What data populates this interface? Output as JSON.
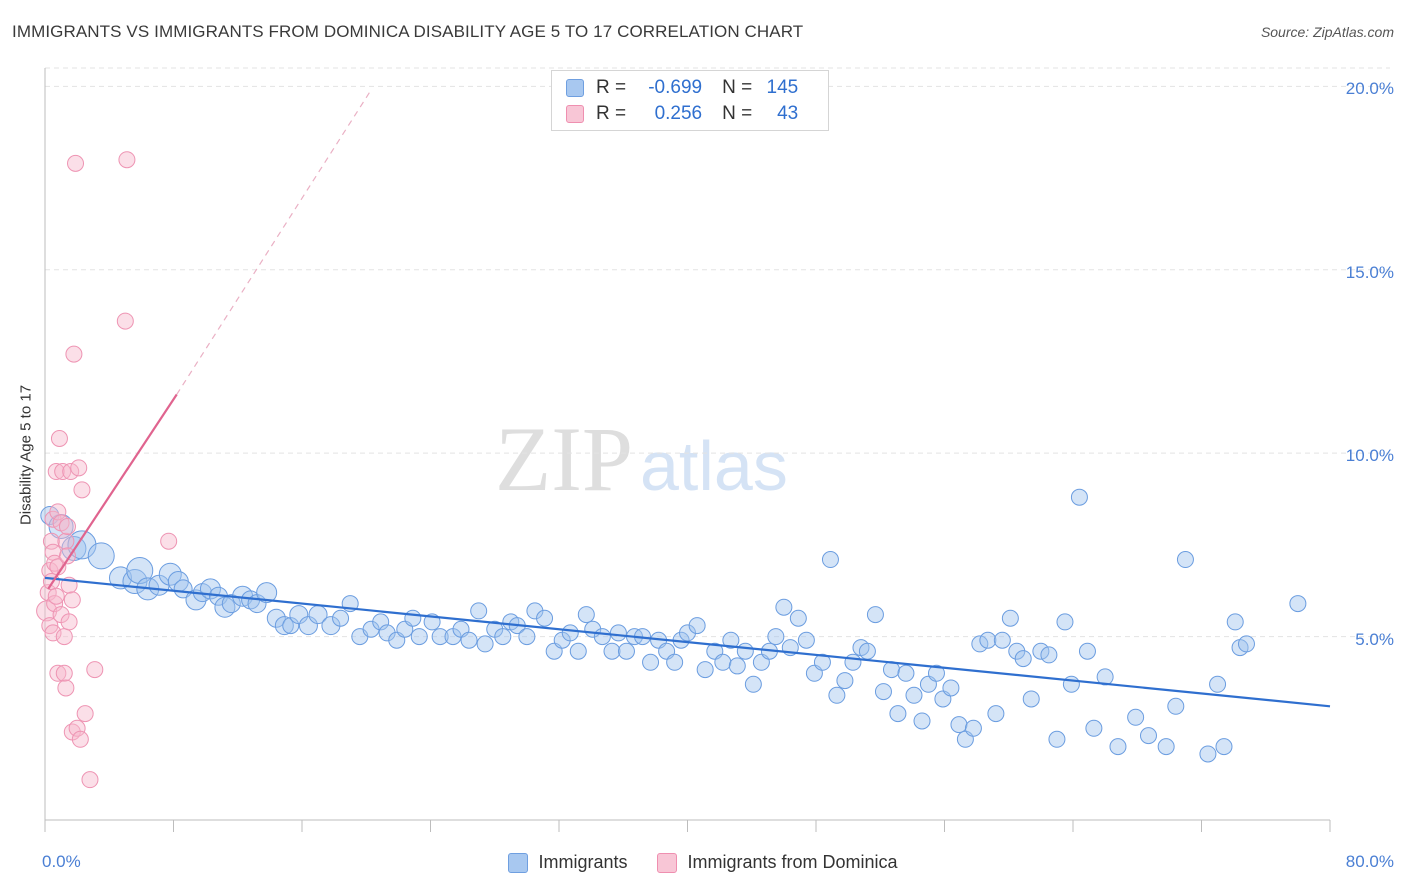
{
  "title": "IMMIGRANTS VS IMMIGRANTS FROM DOMINICA DISABILITY AGE 5 TO 17 CORRELATION CHART",
  "source": "Source: ZipAtlas.com",
  "watermark": {
    "zip": "ZIP",
    "atlas": "atlas"
  },
  "colors": {
    "blue": "#4a90e2",
    "blue_line": "#2f6fcf",
    "pink": "#f29ab6",
    "pink_line": "#e0648f",
    "axis_text": "#4a7fd4"
  },
  "legend_stats": [
    {
      "r_label": "R =",
      "r": "-0.699",
      "n_label": "N =",
      "n": "145",
      "color": "#a8c8f0",
      "border": "#6f9fe0"
    },
    {
      "r_label": "R =",
      "r": "0.256",
      "n_label": "N =",
      "n": "43",
      "color": "#f8c6d6",
      "border": "#ef8fb0"
    }
  ],
  "chart_data": {
    "type": "scatter",
    "title": "IMMIGRANTS VS IMMIGRANTS FROM DOMINICA DISABILITY AGE 5 TO 17 CORRELATION CHART",
    "xlabel": "",
    "ylabel": "Disability Age 5 to 17",
    "xlim": [
      0,
      80
    ],
    "ylim": [
      0,
      20.5
    ],
    "x_tick_labels": [
      "0.0%",
      "80.0%"
    ],
    "y_tick_labels": [
      "5.0%",
      "10.0%",
      "15.0%",
      "20.0%"
    ],
    "y_ticks": [
      5,
      10,
      15,
      20
    ],
    "grid": true,
    "legend_position": "bottom",
    "series": [
      {
        "name": "Immigrants",
        "color": "#4a90e2",
        "trend": {
          "x": [
            0,
            80
          ],
          "y": [
            6.6,
            3.1
          ]
        },
        "points": [
          [
            0.3,
            8.3,
            9
          ],
          [
            1.0,
            8.0,
            12
          ],
          [
            1.8,
            7.4,
            12
          ],
          [
            2.3,
            7.5,
            14
          ],
          [
            3.5,
            7.2,
            13
          ],
          [
            4.7,
            6.6,
            11
          ],
          [
            5.6,
            6.5,
            12
          ],
          [
            5.9,
            6.8,
            13
          ],
          [
            6.4,
            6.3,
            11
          ],
          [
            7.1,
            6.4,
            10
          ],
          [
            7.8,
            6.7,
            11
          ],
          [
            8.3,
            6.5,
            10
          ],
          [
            8.6,
            6.3,
            9
          ],
          [
            9.4,
            6.0,
            10
          ],
          [
            9.8,
            6.2,
            9
          ],
          [
            10.3,
            6.3,
            10
          ],
          [
            10.8,
            6.1,
            9
          ],
          [
            11.2,
            5.8,
            10
          ],
          [
            11.6,
            5.9,
            9
          ],
          [
            12.3,
            6.1,
            10
          ],
          [
            12.8,
            6.0,
            9
          ],
          [
            13.2,
            5.9,
            9
          ],
          [
            13.8,
            6.2,
            10
          ],
          [
            14.4,
            5.5,
            9
          ],
          [
            14.9,
            5.3,
            9
          ],
          [
            15.3,
            5.3,
            8
          ],
          [
            15.8,
            5.6,
            9
          ],
          [
            16.4,
            5.3,
            9
          ],
          [
            17.0,
            5.6,
            9
          ],
          [
            17.8,
            5.3,
            9
          ],
          [
            18.4,
            5.5,
            8
          ],
          [
            19.0,
            5.9,
            8
          ],
          [
            19.6,
            5.0,
            8
          ],
          [
            20.3,
            5.2,
            8
          ],
          [
            20.9,
            5.4,
            8
          ],
          [
            21.3,
            5.1,
            8
          ],
          [
            21.9,
            4.9,
            8
          ],
          [
            22.4,
            5.2,
            8
          ],
          [
            22.9,
            5.5,
            8
          ],
          [
            23.3,
            5.0,
            8
          ],
          [
            24.1,
            5.4,
            8
          ],
          [
            24.6,
            5.0,
            8
          ],
          [
            25.4,
            5.0,
            8
          ],
          [
            25.9,
            5.2,
            8
          ],
          [
            26.4,
            4.9,
            8
          ],
          [
            27.0,
            5.7,
            8
          ],
          [
            27.4,
            4.8,
            8
          ],
          [
            28.0,
            5.2,
            8
          ],
          [
            28.5,
            5.0,
            8
          ],
          [
            29.0,
            5.4,
            8
          ],
          [
            29.4,
            5.3,
            8
          ],
          [
            30.0,
            5.0,
            8
          ],
          [
            30.5,
            5.7,
            8
          ],
          [
            31.1,
            5.5,
            8
          ],
          [
            31.7,
            4.6,
            8
          ],
          [
            32.2,
            4.9,
            8
          ],
          [
            32.7,
            5.1,
            8
          ],
          [
            33.2,
            4.6,
            8
          ],
          [
            33.7,
            5.6,
            8
          ],
          [
            34.1,
            5.2,
            8
          ],
          [
            34.7,
            5.0,
            8
          ],
          [
            35.3,
            4.6,
            8
          ],
          [
            35.7,
            5.1,
            8
          ],
          [
            36.2,
            4.6,
            8
          ],
          [
            36.7,
            5.0,
            8
          ],
          [
            37.2,
            5.0,
            8
          ],
          [
            37.7,
            4.3,
            8
          ],
          [
            38.2,
            4.9,
            8
          ],
          [
            38.7,
            4.6,
            8
          ],
          [
            39.2,
            4.3,
            8
          ],
          [
            39.6,
            4.9,
            8
          ],
          [
            40.0,
            5.1,
            8
          ],
          [
            40.6,
            5.3,
            8
          ],
          [
            41.1,
            4.1,
            8
          ],
          [
            41.7,
            4.6,
            8
          ],
          [
            42.2,
            4.3,
            8
          ],
          [
            42.7,
            4.9,
            8
          ],
          [
            43.1,
            4.2,
            8
          ],
          [
            43.6,
            4.6,
            8
          ],
          [
            44.1,
            3.7,
            8
          ],
          [
            44.6,
            4.3,
            8
          ],
          [
            45.1,
            4.6,
            8
          ],
          [
            45.5,
            5.0,
            8
          ],
          [
            46.0,
            5.8,
            8
          ],
          [
            46.4,
            4.7,
            8
          ],
          [
            46.9,
            5.5,
            8
          ],
          [
            47.4,
            4.9,
            8
          ],
          [
            47.9,
            4.0,
            8
          ],
          [
            48.4,
            4.3,
            8
          ],
          [
            48.9,
            7.1,
            8
          ],
          [
            49.3,
            3.4,
            8
          ],
          [
            49.8,
            3.8,
            8
          ],
          [
            50.3,
            4.3,
            8
          ],
          [
            50.8,
            4.7,
            8
          ],
          [
            51.2,
            4.6,
            8
          ],
          [
            51.7,
            5.6,
            8
          ],
          [
            52.2,
            3.5,
            8
          ],
          [
            52.7,
            4.1,
            8
          ],
          [
            53.1,
            2.9,
            8
          ],
          [
            53.6,
            4.0,
            8
          ],
          [
            54.1,
            3.4,
            8
          ],
          [
            54.6,
            2.7,
            8
          ],
          [
            55.0,
            3.7,
            8
          ],
          [
            55.5,
            4.0,
            8
          ],
          [
            55.9,
            3.3,
            8
          ],
          [
            56.4,
            3.6,
            8
          ],
          [
            56.9,
            2.6,
            8
          ],
          [
            57.3,
            2.2,
            8
          ],
          [
            57.8,
            2.5,
            8
          ],
          [
            58.2,
            4.8,
            8
          ],
          [
            58.7,
            4.9,
            8
          ],
          [
            59.2,
            2.9,
            8
          ],
          [
            59.6,
            4.9,
            8
          ],
          [
            60.1,
            5.5,
            8
          ],
          [
            60.5,
            4.6,
            8
          ],
          [
            60.9,
            4.4,
            8
          ],
          [
            61.4,
            3.3,
            8
          ],
          [
            62.0,
            4.6,
            8
          ],
          [
            62.5,
            4.5,
            8
          ],
          [
            63.0,
            2.2,
            8
          ],
          [
            63.5,
            5.4,
            8
          ],
          [
            63.9,
            3.7,
            8
          ],
          [
            64.4,
            8.8,
            8
          ],
          [
            64.9,
            4.6,
            8
          ],
          [
            65.3,
            2.5,
            8
          ],
          [
            66.0,
            3.9,
            8
          ],
          [
            66.8,
            2.0,
            8
          ],
          [
            67.9,
            2.8,
            8
          ],
          [
            68.7,
            2.3,
            8
          ],
          [
            69.8,
            2.0,
            8
          ],
          [
            70.4,
            3.1,
            8
          ],
          [
            71.0,
            7.1,
            8
          ],
          [
            72.4,
            1.8,
            8
          ],
          [
            73.0,
            3.7,
            8
          ],
          [
            73.4,
            2.0,
            8
          ],
          [
            74.1,
            5.4,
            8
          ],
          [
            74.4,
            4.7,
            8
          ],
          [
            74.8,
            4.8,
            8
          ],
          [
            78.0,
            5.9,
            8
          ]
        ]
      },
      {
        "name": "Immigrants from Dominica",
        "color": "#f29ab6",
        "trend": {
          "x": [
            0.2,
            8.2
          ],
          "y": [
            6.3,
            11.6
          ],
          "dashed_to": [
            20.3,
            19.9
          ]
        },
        "points": [
          [
            0.1,
            5.7,
            10
          ],
          [
            0.2,
            6.2,
            8
          ],
          [
            0.3,
            6.8,
            8
          ],
          [
            0.3,
            5.3,
            8
          ],
          [
            0.4,
            7.6,
            8
          ],
          [
            0.4,
            6.5,
            8
          ],
          [
            0.5,
            7.3,
            8
          ],
          [
            0.5,
            8.2,
            8
          ],
          [
            0.5,
            5.1,
            8
          ],
          [
            0.6,
            5.9,
            8
          ],
          [
            0.6,
            7.0,
            8
          ],
          [
            0.7,
            6.1,
            8
          ],
          [
            0.7,
            9.5,
            8
          ],
          [
            0.8,
            6.9,
            8
          ],
          [
            0.8,
            4.0,
            8
          ],
          [
            0.8,
            8.4,
            8
          ],
          [
            0.9,
            10.4,
            8
          ],
          [
            1.0,
            5.6,
            8
          ],
          [
            1.0,
            8.1,
            8
          ],
          [
            1.1,
            9.5,
            8
          ],
          [
            1.2,
            5.0,
            8
          ],
          [
            1.2,
            4.0,
            8
          ],
          [
            1.3,
            7.6,
            8
          ],
          [
            1.3,
            3.6,
            8
          ],
          [
            1.4,
            7.2,
            8
          ],
          [
            1.4,
            8.0,
            8
          ],
          [
            1.5,
            5.4,
            8
          ],
          [
            1.5,
            6.4,
            8
          ],
          [
            1.6,
            9.5,
            8
          ],
          [
            1.7,
            2.4,
            8
          ],
          [
            1.7,
            6.0,
            8
          ],
          [
            1.8,
            12.7,
            8
          ],
          [
            1.9,
            17.9,
            8
          ],
          [
            2.0,
            2.5,
            8
          ],
          [
            2.1,
            9.6,
            8
          ],
          [
            2.2,
            2.2,
            8
          ],
          [
            2.3,
            9.0,
            8
          ],
          [
            2.5,
            2.9,
            8
          ],
          [
            2.8,
            1.1,
            8
          ],
          [
            3.1,
            4.1,
            8
          ],
          [
            5.0,
            13.6,
            8
          ],
          [
            5.1,
            18.0,
            8
          ],
          [
            7.7,
            7.6,
            8
          ]
        ]
      }
    ]
  }
}
